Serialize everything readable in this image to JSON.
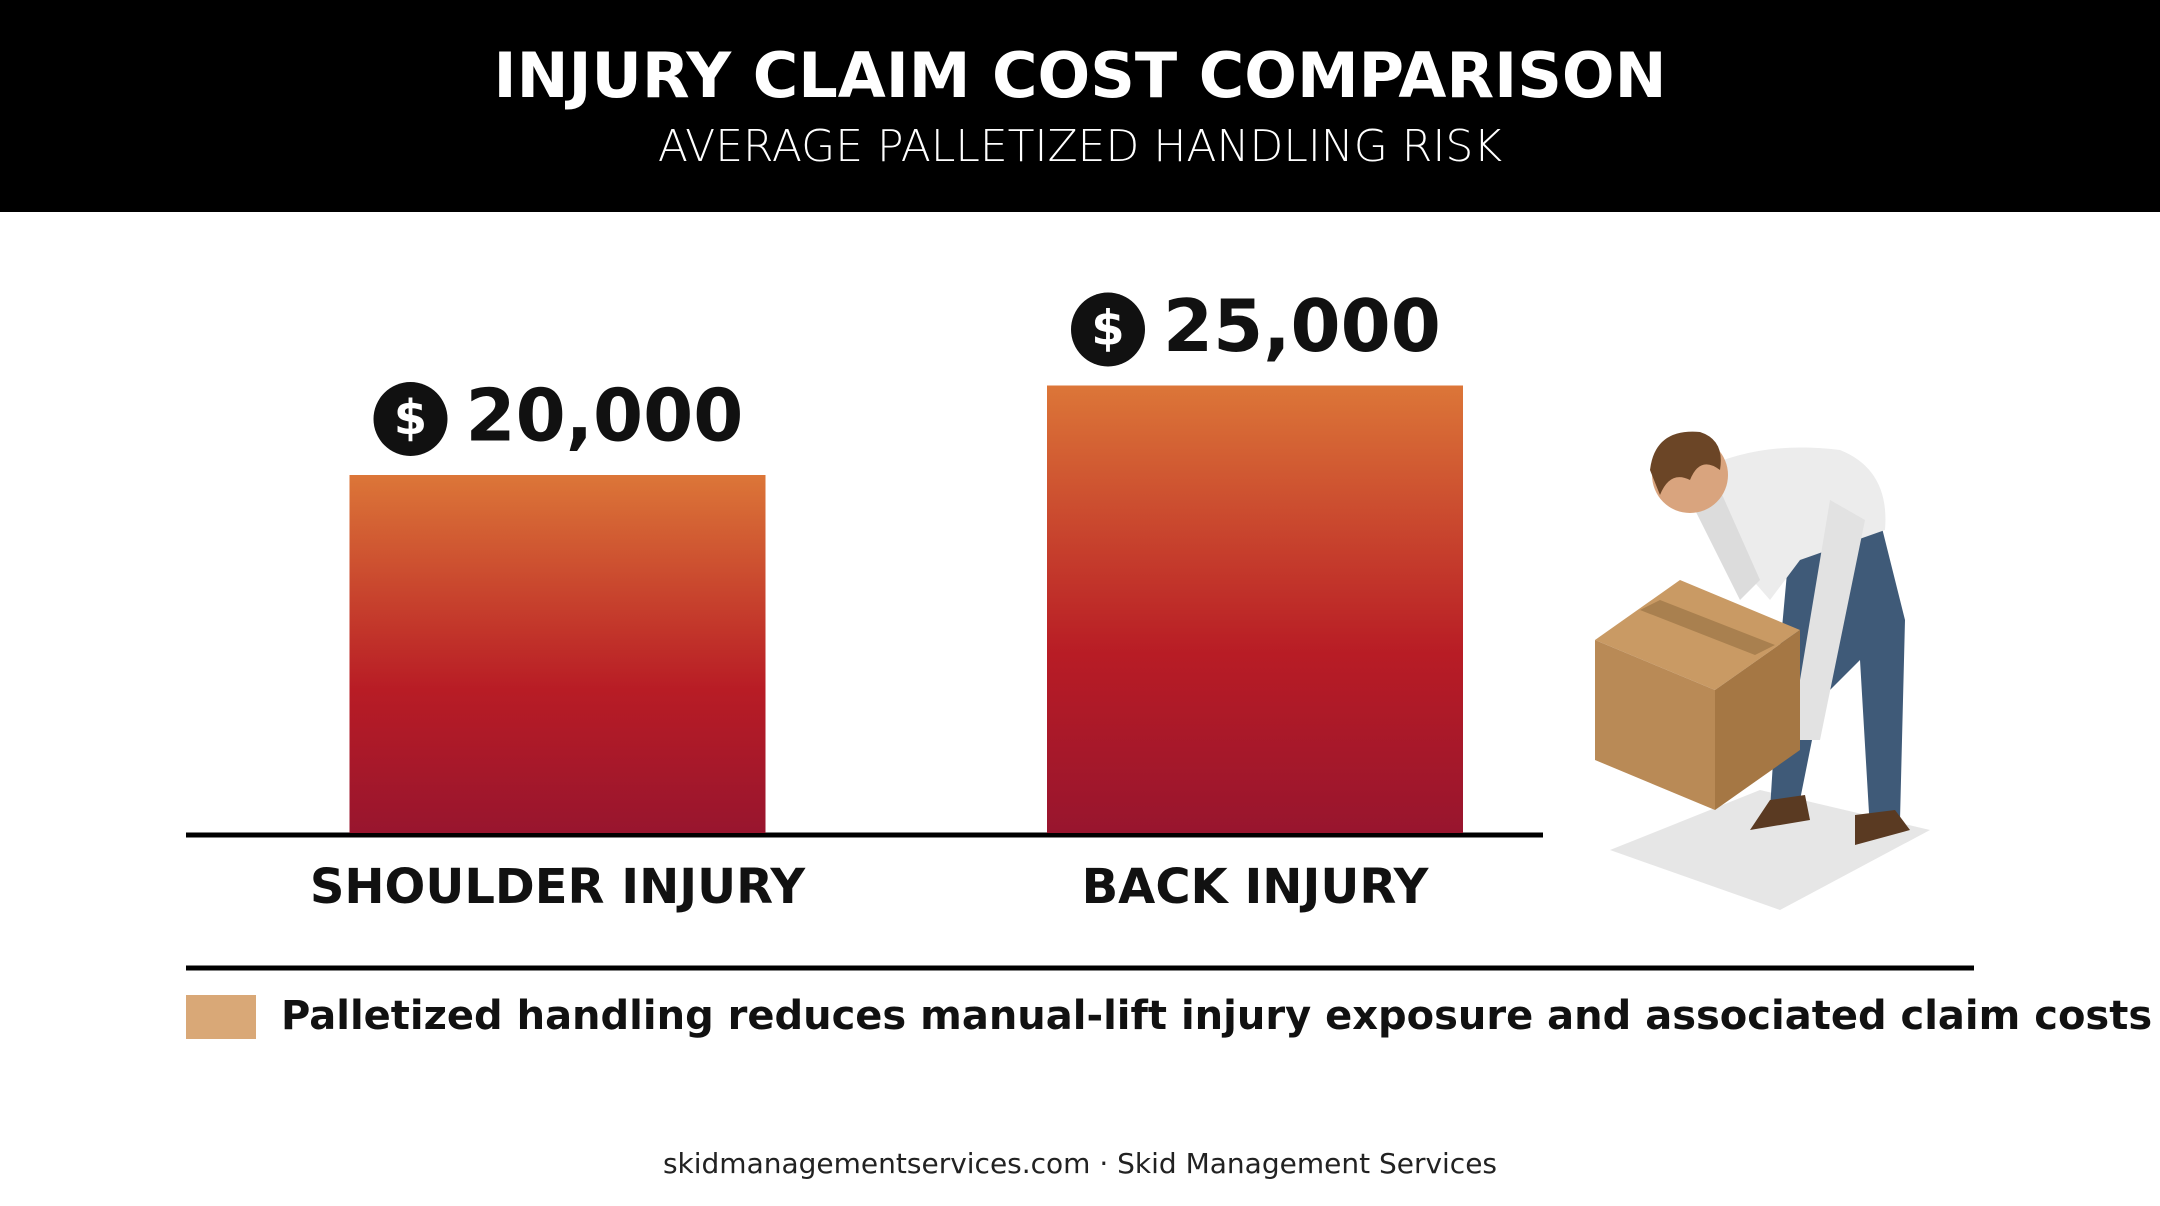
{
  "chart_data": {
    "type": "bar",
    "title": "INJURY CLAIM COST COMPARISON",
    "subtitle": "AVERAGE PALLETIZED HANDLING RISK",
    "categories": [
      "SHOULDER INJURY",
      "BACK INJURY"
    ],
    "values": [
      20000,
      25000
    ],
    "value_labels": [
      "20,000",
      "25,000"
    ],
    "currency_symbol": "$",
    "color": "#b81c25",
    "ylim": [
      0,
      30000
    ],
    "note": "Palletized handling reduces manual-lift injury exposure and associated claim costs",
    "note_color": "#d9a877",
    "footer": "skidmanagementservices.com · Skid Management Services"
  }
}
